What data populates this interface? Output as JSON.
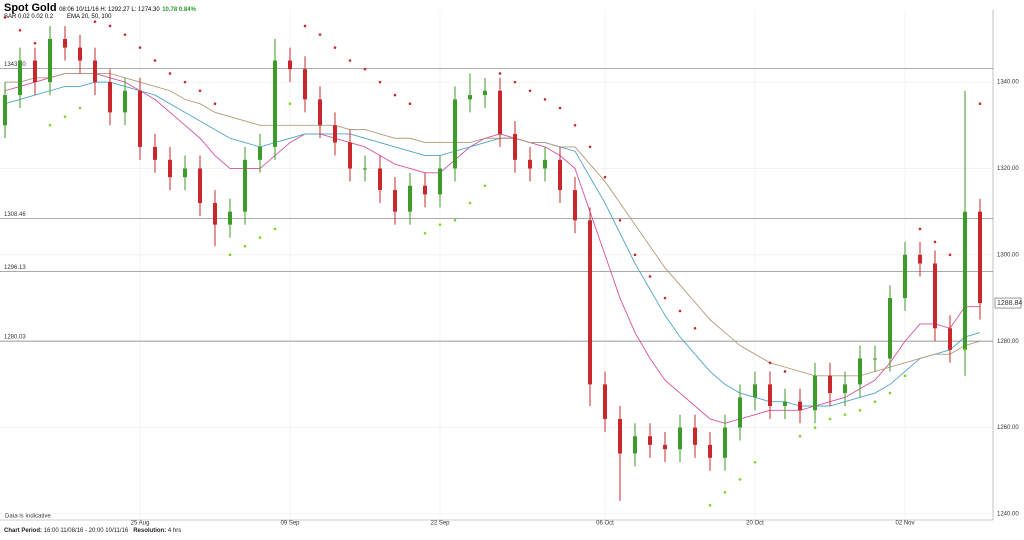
{
  "header": {
    "title": "Spot Gold",
    "quote": "08:06 10/11/16  H: 1292.27  L: 1274.30",
    "change": "10.78 0.84%",
    "sar": "SAR 0.02 0.02 0.2",
    "ema": "EMA 20, 50, 100"
  },
  "footer": {
    "period_label": "Chart Period:",
    "period": "16:00 11/08/16 - 20:00 10/11/16",
    "resolution_label": "Resolution:",
    "resolution": "4 hrs",
    "note": "Data is Indicative"
  },
  "chart_data": {
    "type": "candlestick",
    "categories": [
      null,
      null,
      null,
      null,
      null,
      null,
      null,
      null,
      null,
      "25 Aug",
      null,
      null,
      null,
      null,
      null,
      null,
      null,
      null,
      null,
      "09 Sep",
      null,
      null,
      null,
      null,
      null,
      null,
      null,
      null,
      null,
      "22 Sep",
      null,
      null,
      null,
      null,
      null,
      null,
      null,
      null,
      null,
      null,
      "06 Oct",
      null,
      null,
      null,
      null,
      null,
      null,
      null,
      null,
      null,
      "20 Oct",
      null,
      null,
      null,
      null,
      null,
      null,
      null,
      null,
      null,
      "02 Nov",
      null,
      null,
      null,
      null,
      null
    ],
    "open": [
      1330,
      1337,
      1345,
      1340,
      1350,
      1348,
      1345,
      1340,
      1333,
      1338,
      1325,
      1322,
      1318,
      1320,
      1312,
      1307,
      1310,
      1322,
      1325,
      1345,
      1343,
      1336,
      1330,
      1326,
      1320,
      1320,
      1315,
      1310,
      1316,
      1314,
      1320,
      1336,
      1337,
      1338,
      1328,
      1322,
      1320,
      1322,
      1315,
      1308,
      1270,
      1262,
      1254,
      1258,
      1256,
      1255,
      1260,
      1256,
      1253,
      1260,
      1267,
      1270,
      1265,
      1266,
      1264,
      1272,
      1268,
      1270,
      1276,
      1276,
      1290,
      1300,
      1298,
      1283,
      1278,
      1310
    ],
    "high": [
      1340,
      1348,
      1348,
      1353,
      1353,
      1351,
      1348,
      1343,
      1341,
      1341,
      1328,
      1325,
      1323,
      1323,
      1315,
      1313,
      1325,
      1328,
      1350,
      1348,
      1346,
      1339,
      1333,
      1329,
      1323,
      1323,
      1318,
      1319,
      1319,
      1323,
      1339,
      1342,
      1341,
      1341,
      1331,
      1325,
      1325,
      1325,
      1318,
      1311,
      1273,
      1265,
      1261,
      1261,
      1259,
      1263,
      1263,
      1259,
      1263,
      1270,
      1273,
      1273,
      1269,
      1269,
      1275,
      1275,
      1273,
      1279,
      1279,
      1293,
      1303,
      1303,
      1301,
      1286,
      1338,
      1313
    ],
    "low": [
      1327,
      1334,
      1337,
      1337,
      1345,
      1342,
      1337,
      1330,
      1330,
      1322,
      1319,
      1315,
      1315,
      1309,
      1302,
      1304,
      1307,
      1319,
      1322,
      1340,
      1333,
      1327,
      1323,
      1317,
      1317,
      1312,
      1307,
      1307,
      1311,
      1311,
      1317,
      1333,
      1334,
      1325,
      1319,
      1317,
      1317,
      1312,
      1305,
      1265,
      1259,
      1243,
      1251,
      1253,
      1252,
      1252,
      1253,
      1250,
      1250,
      1257,
      1264,
      1262,
      1262,
      1261,
      1261,
      1265,
      1265,
      1267,
      1273,
      1273,
      1287,
      1295,
      1280,
      1275,
      1272,
      1285
    ],
    "close": [
      1337,
      1345,
      1340,
      1350,
      1348,
      1345,
      1340,
      1333,
      1338,
      1325,
      1322,
      1318,
      1320,
      1312,
      1307,
      1310,
      1322,
      1325,
      1345,
      1343,
      1336,
      1330,
      1326,
      1320,
      1320,
      1315,
      1310,
      1316,
      1314,
      1320,
      1336,
      1337,
      1338,
      1328,
      1322,
      1320,
      1322,
      1315,
      1308,
      1270,
      1262,
      1254,
      1258,
      1256,
      1255,
      1260,
      1256,
      1253,
      1260,
      1267,
      1270,
      1265,
      1266,
      1264,
      1272,
      1268,
      1270,
      1276,
      1276,
      1290,
      1300,
      1298,
      1283,
      1278,
      1310,
      1288.84
    ],
    "up_color": "#3d9b2a",
    "down_color": "#c8282b",
    "lines": [
      {
        "name": "EMA 20",
        "color": "#d2529a",
        "values": [
          1338,
          1339,
          1340,
          1341,
          1342,
          1342,
          1342,
          1341,
          1340,
          1338,
          1336,
          1333,
          1330,
          1327,
          1323,
          1320,
          1320,
          1320,
          1323,
          1326,
          1328,
          1328,
          1327,
          1326,
          1325,
          1323,
          1321,
          1320,
          1319,
          1319,
          1322,
          1325,
          1327,
          1328,
          1327,
          1326,
          1325,
          1323,
          1320,
          1310,
          1300,
          1290,
          1282,
          1276,
          1271,
          1268,
          1265,
          1262,
          1261,
          1262,
          1263,
          1264,
          1264,
          1264,
          1265,
          1266,
          1267,
          1269,
          1271,
          1275,
          1280,
          1284,
          1284,
          1283,
          1288,
          1288
        ]
      },
      {
        "name": "EMA 50",
        "color": "#4fa3c8",
        "values": [
          1335,
          1336,
          1337,
          1338,
          1339,
          1339,
          1340,
          1340,
          1339,
          1338,
          1337,
          1335,
          1333,
          1331,
          1329,
          1327,
          1326,
          1325,
          1326,
          1327,
          1328,
          1328,
          1328,
          1328,
          1327,
          1326,
          1325,
          1324,
          1323,
          1323,
          1324,
          1325,
          1326,
          1327,
          1327,
          1326,
          1326,
          1325,
          1324,
          1318,
          1312,
          1305,
          1298,
          1292,
          1286,
          1281,
          1277,
          1273,
          1270,
          1268,
          1267,
          1266,
          1266,
          1265,
          1265,
          1265,
          1266,
          1267,
          1268,
          1270,
          1273,
          1276,
          1277,
          1278,
          1281,
          1282
        ]
      },
      {
        "name": "EMA 100",
        "color": "#b39a7a",
        "values": [
          1340,
          1340,
          1341,
          1341,
          1342,
          1342,
          1342,
          1342,
          1341,
          1340,
          1339,
          1338,
          1336,
          1335,
          1333,
          1332,
          1331,
          1330,
          1330,
          1330,
          1330,
          1330,
          1330,
          1329,
          1329,
          1328,
          1327,
          1327,
          1326,
          1326,
          1326,
          1326,
          1327,
          1327,
          1327,
          1326,
          1326,
          1325,
          1325,
          1321,
          1317,
          1312,
          1307,
          1302,
          1297,
          1293,
          1289,
          1285,
          1282,
          1279,
          1277,
          1275,
          1274,
          1273,
          1272,
          1272,
          1272,
          1272,
          1273,
          1274,
          1275,
          1276,
          1277,
          1277,
          1279,
          1280
        ]
      }
    ],
    "sar": [
      1355,
      1352,
      1349,
      1330,
      1332,
      1334,
      1354,
      1353,
      1351,
      1348,
      1345,
      1342,
      1340,
      1338,
      1335,
      1300,
      1302,
      1304,
      1306,
      1335,
      1353,
      1351,
      1348,
      1345,
      1343,
      1340,
      1337,
      1335,
      1305,
      1307,
      1308,
      1312,
      1316,
      1342,
      1340,
      1338,
      1336,
      1334,
      1330,
      1325,
      1318,
      1308,
      1300,
      1295,
      1290,
      1287,
      1283,
      1242,
      1245,
      1248,
      1252,
      1275,
      1273,
      1258,
      1260,
      1262,
      1263,
      1264,
      1266,
      1268,
      1272,
      1306,
      1303,
      1300,
      1278,
      1335
    ],
    "levels": [
      {
        "value": 1343.2,
        "label": "1343.20"
      },
      {
        "value": 1308.46,
        "label": "1308.46"
      },
      {
        "value": 1296.13,
        "label": "1296.13"
      },
      {
        "value": 1280.03,
        "label": "1280.03"
      }
    ],
    "ylim": [
      1238.6,
      1356.7
    ],
    "yticks": [
      {
        "value": 1240,
        "label": "1240.00"
      },
      {
        "value": 1260,
        "label": "1260.00"
      },
      {
        "value": 1280,
        "label": "1280.00"
      },
      {
        "value": 1300,
        "label": "1300.00"
      },
      {
        "value": 1320,
        "label": "1320.00"
      },
      {
        "value": 1340,
        "label": "1340.00"
      }
    ],
    "grid": true
  }
}
